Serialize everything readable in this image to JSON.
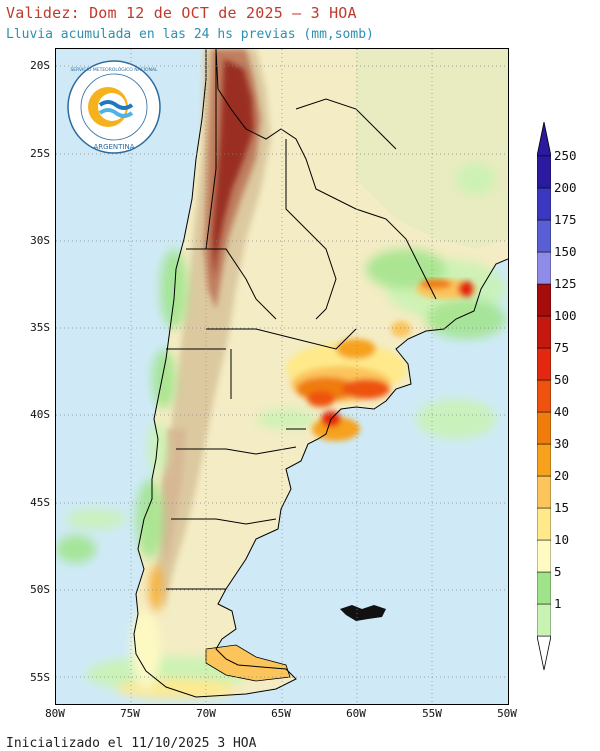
{
  "header": {
    "title": "Validez: Dom 12 de OCT de 2025 — 3 HOA",
    "subtitle": "Lluvia acumulada en las 24 hs previas (mm,somb)"
  },
  "footer": {
    "init": "Inicializado el 11/10/2025 3 HOA"
  },
  "logo": {
    "ring_text_top": "SERVICIO METEOROLÓGICO NACIONAL",
    "ring_text_bottom": "ARGENTINA",
    "icon": "smn-logo-icon"
  },
  "map": {
    "lat_labels": [
      "20S",
      "25S",
      "30S",
      "35S",
      "40S",
      "45S",
      "50S",
      "55S"
    ],
    "lon_labels": [
      "80W",
      "75W",
      "70W",
      "65W",
      "60W",
      "55W",
      "50W"
    ],
    "extent": {
      "lon_min": -80,
      "lon_max": -50,
      "lat_min": -56.5,
      "lat_max": -19.5
    },
    "colors": {
      "ocean": "#cfeaf6",
      "land_base": "#f4ecc4",
      "mountain_low": "#dcc9a0",
      "mountain_mid": "#c07f5e",
      "mountain_high": "#9a2d22",
      "border": "#000000"
    }
  },
  "legend": {
    "labels": [
      "1",
      "5",
      "10",
      "15",
      "20",
      "30",
      "40",
      "50",
      "75",
      "100",
      "125",
      "150",
      "175",
      "200",
      "250"
    ],
    "colors": [
      "#c9f3b3",
      "#9fe48a",
      "#fffbc2",
      "#ffe98a",
      "#fbc55b",
      "#f6a21d",
      "#f07c0c",
      "#ee520e",
      "#e3280f",
      "#c41810",
      "#a60c0c",
      "#8f8be8",
      "#5a5fd6",
      "#3a38c0",
      "#2a1aa0"
    ]
  }
}
